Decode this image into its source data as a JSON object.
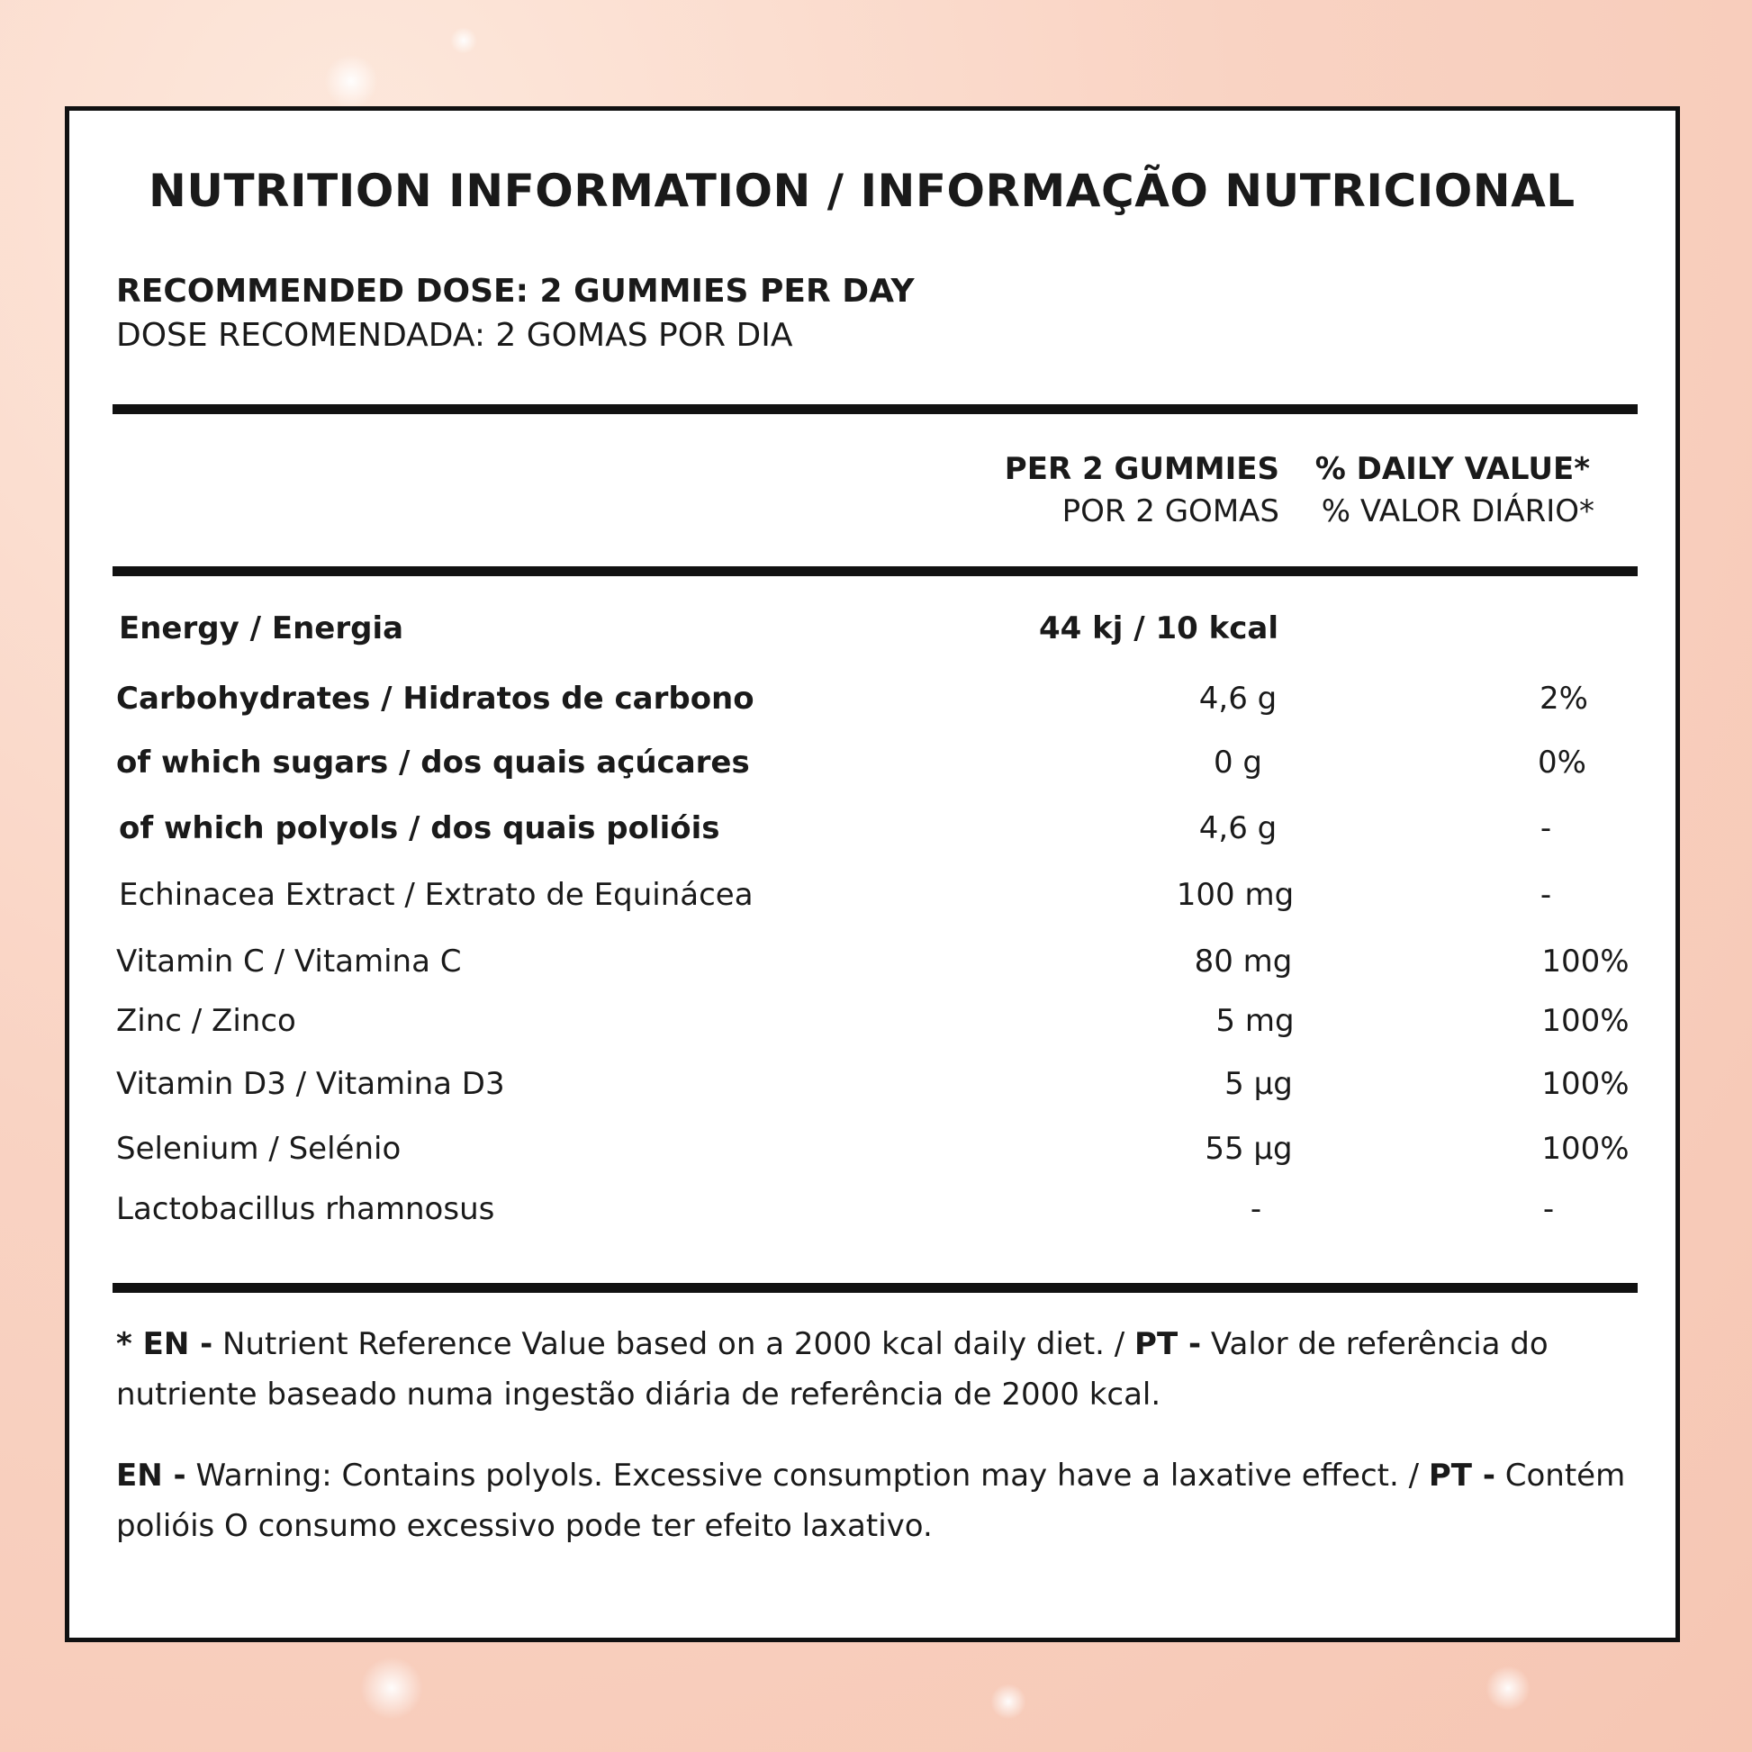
{
  "title": "NUTRITION INFORMATION / INFORMAÇÃO NUTRICIONAL",
  "dose": {
    "en": "RECOMMENDED DOSE: 2 GUMMIES PER DAY",
    "pt": "DOSE RECOMENDADA: 2 GOMAS POR DIA"
  },
  "columns": {
    "per_en": "PER 2 GUMMIES",
    "per_pt": "POR 2 GOMAS",
    "dv_en": "% DAILY VALUE*",
    "dv_pt": "% VALOR DIÁRIO*"
  },
  "rows": [
    {
      "name": "Energy / Energia",
      "value": "44 kj / 10 kcal",
      "dv": ""
    },
    {
      "name": "Carbohydrates / Hidratos de carbono",
      "value": "4,6 g",
      "dv": "2%"
    },
    {
      "name": "of which sugars / dos quais açúcares",
      "value": "0 g",
      "dv": "0%"
    },
    {
      "name": "of which polyols / dos quais polióis",
      "value": "4,6 g",
      "dv": "-"
    },
    {
      "name": "Echinacea Extract / Extrato de Equinácea",
      "value": "100 mg",
      "dv": "-"
    },
    {
      "name": "Vitamin C / Vitamina C",
      "value": "80 mg",
      "dv": "100%"
    },
    {
      "name": "Zinc / Zinco",
      "value": "5 mg",
      "dv": "100%"
    },
    {
      "name": "Vitamin D3 / Vitamina D3",
      "value": "5 µg",
      "dv": "100%"
    },
    {
      "name": "Selenium / Selénio",
      "value": "55 µg",
      "dv": "100%"
    },
    {
      "name": "Lactobacillus rhamnosus",
      "value": "-",
      "dv": "-"
    }
  ],
  "footnote": {
    "star_en_tag": "* EN -",
    "en_text": " Nutrient Reference Value based on a 2000 kcal daily diet. / ",
    "pt_tag": "PT -",
    "pt_text": " Valor de referência do nutriente baseado numa ingestão diária de referência de 2000 kcal."
  },
  "warning": {
    "en_tag": "EN -",
    "en_text": " Warning: Contains polyols. Excessive consumption may have a laxative effect. / ",
    "pt_tag": "PT -",
    "pt_text": " Contém polióis O consumo excessivo pode ter efeito laxativo."
  }
}
